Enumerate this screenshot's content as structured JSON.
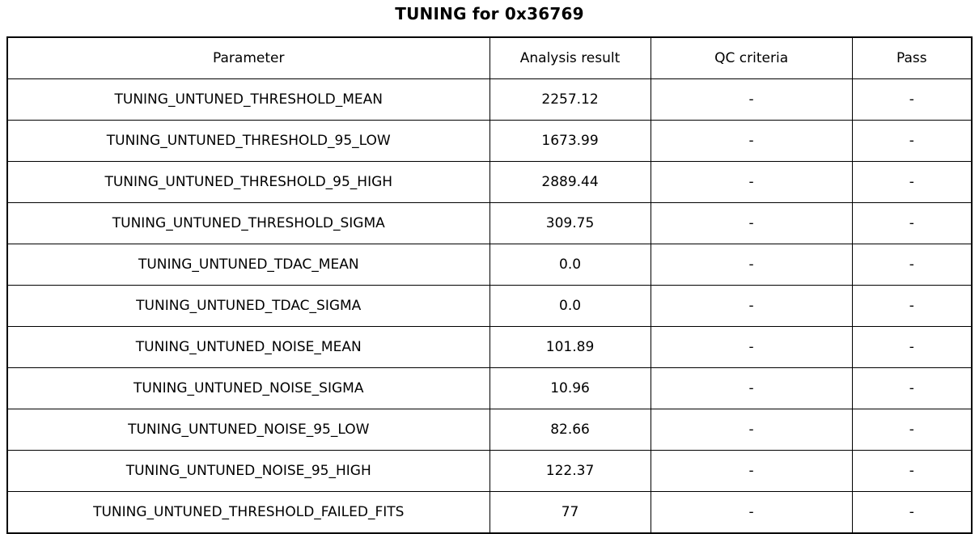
{
  "title": "TUNING for 0x36769",
  "colors": {
    "background": "#ffffff",
    "border": "#000000",
    "text": "#000000"
  },
  "chart_data": {
    "type": "table",
    "title": "TUNING for 0x36769",
    "columns": [
      "Parameter",
      "Analysis result",
      "QC criteria",
      "Pass"
    ],
    "rows": [
      [
        "TUNING_UNTUNED_THRESHOLD_MEAN",
        "2257.12",
        "-",
        "-"
      ],
      [
        "TUNING_UNTUNED_THRESHOLD_95_LOW",
        "1673.99",
        "-",
        "-"
      ],
      [
        "TUNING_UNTUNED_THRESHOLD_95_HIGH",
        "2889.44",
        "-",
        "-"
      ],
      [
        "TUNING_UNTUNED_THRESHOLD_SIGMA",
        "309.75",
        "-",
        "-"
      ],
      [
        "TUNING_UNTUNED_TDAC_MEAN",
        "0.0",
        "-",
        "-"
      ],
      [
        "TUNING_UNTUNED_TDAC_SIGMA",
        "0.0",
        "-",
        "-"
      ],
      [
        "TUNING_UNTUNED_NOISE_MEAN",
        "101.89",
        "-",
        "-"
      ],
      [
        "TUNING_UNTUNED_NOISE_SIGMA",
        "10.96",
        "-",
        "-"
      ],
      [
        "TUNING_UNTUNED_NOISE_95_LOW",
        "82.66",
        "-",
        "-"
      ],
      [
        "TUNING_UNTUNED_NOISE_95_HIGH",
        "122.37",
        "-",
        "-"
      ],
      [
        "TUNING_UNTUNED_THRESHOLD_FAILED_FITS",
        "77",
        "-",
        "-"
      ]
    ]
  }
}
